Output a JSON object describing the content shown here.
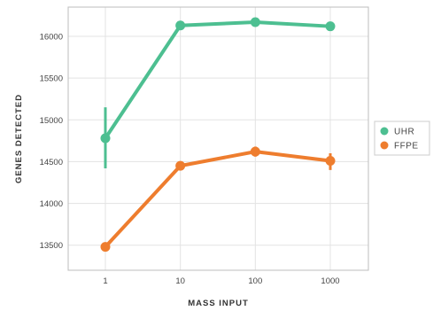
{
  "chart_data": {
    "type": "line",
    "categories": [
      "1",
      "10",
      "100",
      "1000"
    ],
    "xlabel": "MASS INPUT",
    "ylabel": "GENES DETECTED",
    "ylim": [
      13200,
      16350
    ],
    "yticks": [
      13500,
      14000,
      14500,
      15000,
      15500,
      16000
    ],
    "grid": true,
    "legend_position": "right",
    "series": [
      {
        "name": "UHR",
        "color": "#4dbf91",
        "values": [
          14780,
          16130,
          16170,
          16120
        ],
        "error": [
          [
            14420,
            15150
          ],
          null,
          null,
          null
        ]
      },
      {
        "name": "FFPE",
        "color": "#ee7d2e",
        "values": [
          13480,
          14450,
          14620,
          14510
        ],
        "error": [
          null,
          null,
          [
            14560,
            14680
          ],
          [
            14400,
            14600
          ]
        ]
      }
    ]
  }
}
